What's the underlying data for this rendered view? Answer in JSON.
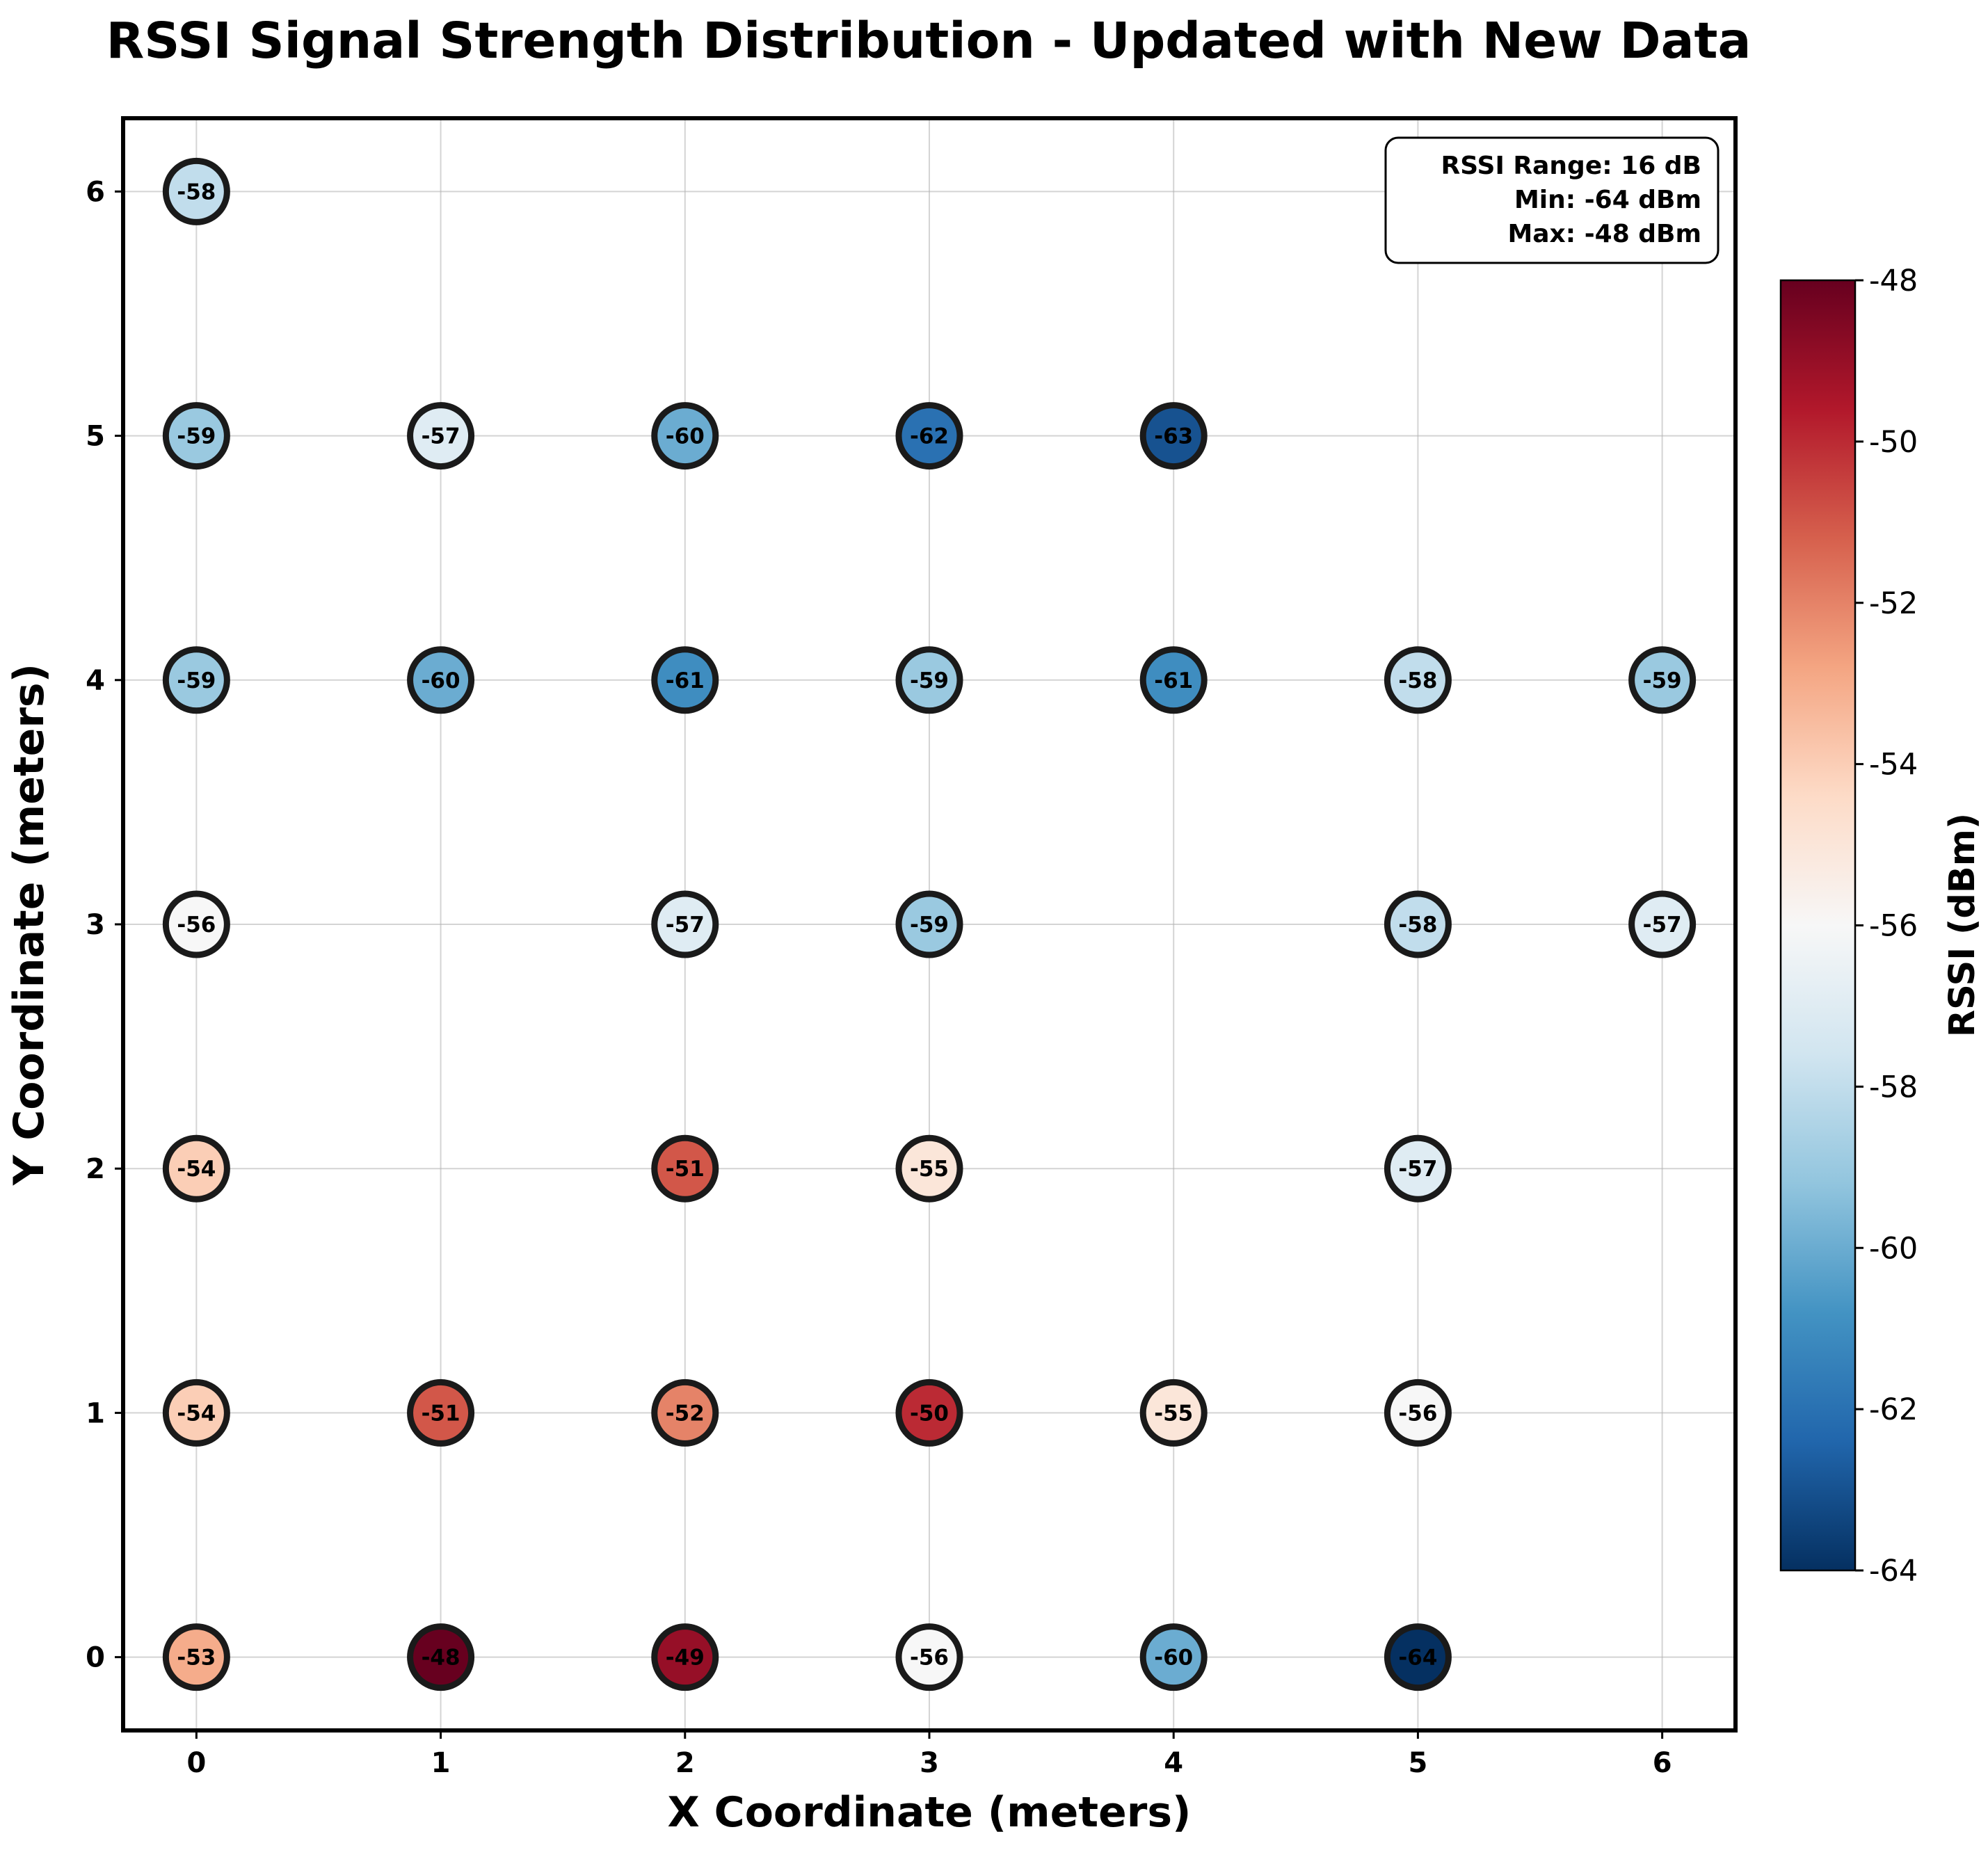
{
  "chart_data": {
    "type": "scatter",
    "title": "RSSI Signal Strength Distribution - Updated with New Data",
    "xlabel": "X Coordinate (meters)",
    "ylabel": "Y Coordinate (meters)",
    "xlim": [
      -0.3,
      6.3
    ],
    "ylim": [
      -0.3,
      6.3
    ],
    "xticks": [
      0,
      1,
      2,
      3,
      4,
      5,
      6
    ],
    "yticks": [
      0,
      1,
      2,
      3,
      4,
      5,
      6
    ],
    "grid": true,
    "colormap": "RdBu_r",
    "colorbar": {
      "label": "RSSI (dBm)",
      "min": -64,
      "max": -48,
      "ticks": [
        -48,
        -50,
        -52,
        -54,
        -56,
        -58,
        -60,
        -62,
        -64
      ]
    },
    "stats_box": {
      "placement": "top-right",
      "lines": [
        "RSSI Range: 16 dB",
        "Min: -64 dBm",
        "Max: -48 dBm"
      ]
    },
    "points": [
      {
        "x": 0,
        "y": 6,
        "rssi": -58
      },
      {
        "x": 0,
        "y": 5,
        "rssi": -59
      },
      {
        "x": 1,
        "y": 5,
        "rssi": -57
      },
      {
        "x": 2,
        "y": 5,
        "rssi": -60
      },
      {
        "x": 3,
        "y": 5,
        "rssi": -62
      },
      {
        "x": 4,
        "y": 5,
        "rssi": -63
      },
      {
        "x": 0,
        "y": 4,
        "rssi": -59
      },
      {
        "x": 1,
        "y": 4,
        "rssi": -60
      },
      {
        "x": 2,
        "y": 4,
        "rssi": -61
      },
      {
        "x": 3,
        "y": 4,
        "rssi": -59
      },
      {
        "x": 4,
        "y": 4,
        "rssi": -61
      },
      {
        "x": 5,
        "y": 4,
        "rssi": -58
      },
      {
        "x": 6,
        "y": 4,
        "rssi": -59
      },
      {
        "x": 0,
        "y": 3,
        "rssi": -56
      },
      {
        "x": 2,
        "y": 3,
        "rssi": -57
      },
      {
        "x": 3,
        "y": 3,
        "rssi": -59
      },
      {
        "x": 5,
        "y": 3,
        "rssi": -58
      },
      {
        "x": 6,
        "y": 3,
        "rssi": -57
      },
      {
        "x": 0,
        "y": 2,
        "rssi": -54
      },
      {
        "x": 2,
        "y": 2,
        "rssi": -51
      },
      {
        "x": 3,
        "y": 2,
        "rssi": -55
      },
      {
        "x": 5,
        "y": 2,
        "rssi": -57
      },
      {
        "x": 0,
        "y": 1,
        "rssi": -54
      },
      {
        "x": 1,
        "y": 1,
        "rssi": -51
      },
      {
        "x": 2,
        "y": 1,
        "rssi": -52
      },
      {
        "x": 3,
        "y": 1,
        "rssi": -50
      },
      {
        "x": 4,
        "y": 1,
        "rssi": -55
      },
      {
        "x": 5,
        "y": 1,
        "rssi": -56
      },
      {
        "x": 0,
        "y": 0,
        "rssi": -53
      },
      {
        "x": 1,
        "y": 0,
        "rssi": -48
      },
      {
        "x": 2,
        "y": 0,
        "rssi": -49
      },
      {
        "x": 3,
        "y": 0,
        "rssi": -56
      },
      {
        "x": 4,
        "y": 0,
        "rssi": -60
      },
      {
        "x": 5,
        "y": 0,
        "rssi": -64
      }
    ]
  }
}
